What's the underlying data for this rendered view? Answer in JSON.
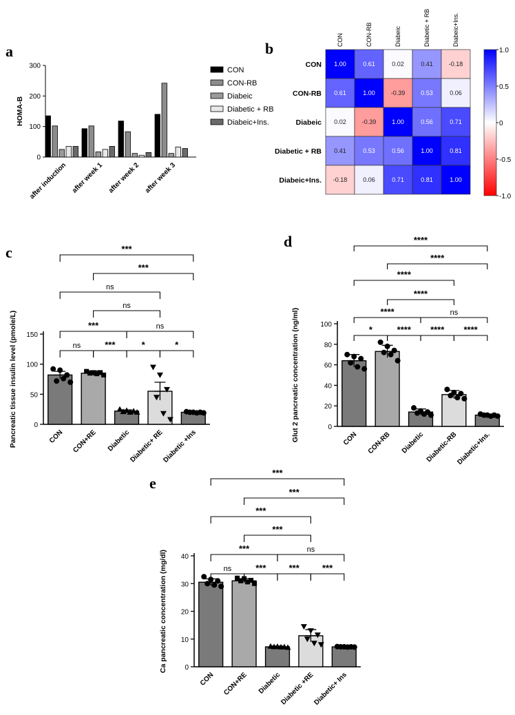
{
  "colors": {
    "bar_dark": "#7a7a7a",
    "bar_mid": "#a9a9a9",
    "bar_light": "#dcdcdc",
    "pos": "#0000ff",
    "neg": "#ff0000"
  },
  "chart_data": [
    {
      "id": "a",
      "panel_label": "a",
      "type": "bar",
      "ylabel": "HOMA-B",
      "ylim": [
        0,
        300
      ],
      "yticks": [
        0,
        100,
        200,
        300
      ],
      "categories": [
        "after induction",
        "after week 1",
        "after week 2",
        "after week 3"
      ],
      "series": [
        {
          "name": "CON",
          "values": [
            135,
            93,
            118,
            140
          ],
          "fill": "#000000"
        },
        {
          "name": "CON-RB",
          "values": [
            102,
            102,
            83,
            242
          ],
          "fill": "#8c8c8c"
        },
        {
          "name": "Diabeic",
          "values": [
            25,
            17,
            12,
            12
          ],
          "fill": "#9a9a9a"
        },
        {
          "name": "Diabetic + RB",
          "values": [
            35,
            25,
            6,
            33
          ],
          "fill": "#e8e8e8"
        },
        {
          "name": "Diabeic+Ins.",
          "values": [
            35,
            35,
            15,
            28
          ],
          "fill": "#6a6a6a"
        }
      ]
    },
    {
      "id": "b",
      "panel_label": "b",
      "type": "heatmap",
      "labels": [
        "CON",
        "CON-RB",
        "Diabeic",
        "Diabetic + RB",
        "Diabeic+Ins."
      ],
      "matrix": [
        [
          "1.00",
          "0.61",
          "0.02",
          "0.41",
          "-0.18"
        ],
        [
          "0.61",
          "1.00",
          "-0.39",
          "0.53",
          "0.06"
        ],
        [
          "0.02",
          "-0.39",
          "1.00",
          "0.56",
          "0.71"
        ],
        [
          "0.41",
          "0.53",
          "0.56",
          "1.00",
          "0.81"
        ],
        [
          "-0.18",
          "0.06",
          "0.71",
          "0.81",
          "1.00"
        ]
      ],
      "colorbar_ticks": [
        "1.0",
        "0.5",
        "0",
        "-0.5",
        "-1.0"
      ],
      "range": [
        -1,
        1
      ]
    },
    {
      "id": "c",
      "panel_label": "c",
      "type": "bar",
      "ylabel": "Pancreatic tissue insulin level (pmole/L)",
      "ylim": [
        0,
        150
      ],
      "yticks": [
        0,
        50,
        100,
        150
      ],
      "categories": [
        "CON",
        "CON+RE",
        "Diabetic",
        "Diabetic+ RE",
        "Diabetic +Ins"
      ],
      "values": [
        82,
        85,
        22,
        55,
        20
      ],
      "errors": [
        6,
        4,
        2,
        15,
        1
      ],
      "points": [
        [
          92,
          90,
          82,
          72,
          76,
          70
        ],
        [
          88,
          86,
          86,
          85,
          84,
          82
        ],
        [
          25,
          23,
          22,
          21,
          20,
          20
        ],
        [
          95,
          82,
          58,
          45,
          18,
          8
        ],
        [
          21,
          20,
          20,
          20,
          19,
          19
        ]
      ],
      "markers": [
        "circle",
        "square",
        "triangle",
        "tri-down",
        "circle"
      ],
      "significance": [
        {
          "from": 0,
          "to": 4,
          "label": "***"
        },
        {
          "from": 1,
          "to": 4,
          "label": "***"
        },
        {
          "from": 0,
          "to": 3,
          "label": "ns"
        },
        {
          "from": 1,
          "to": 3,
          "label": "ns"
        },
        {
          "from": 0,
          "to": 2,
          "label": "***"
        },
        {
          "from": 2,
          "to": 4,
          "label": "ns"
        },
        {
          "from": 0,
          "to": 1,
          "label": "ns"
        },
        {
          "from": 1,
          "to": 2,
          "label": "***"
        },
        {
          "from": 2,
          "to": 3,
          "label": "*"
        },
        {
          "from": 3,
          "to": 4,
          "label": "*"
        }
      ]
    },
    {
      "id": "d",
      "panel_label": "d",
      "type": "bar",
      "ylabel": "Glut 2 pancreatic concentration  (ng/ml)",
      "ylim": [
        0,
        100
      ],
      "yticks": [
        0,
        20,
        40,
        60,
        80,
        100
      ],
      "categories": [
        "CON",
        "CON-RB",
        "Diabetic",
        "Diabetic-RB",
        "Diabetic+Ins."
      ],
      "values": [
        64,
        73,
        14,
        31,
        11
      ],
      "errors": [
        6,
        6,
        3,
        4,
        1
      ],
      "points": [
        [
          70,
          68,
          66,
          62,
          58,
          56
        ],
        [
          82,
          78,
          74,
          72,
          70,
          64
        ],
        [
          18,
          15,
          14,
          13,
          12,
          11
        ],
        [
          36,
          33,
          32,
          30,
          28,
          27
        ],
        [
          12,
          11,
          11,
          11,
          10,
          10
        ]
      ],
      "markers": [
        "circle",
        "circle",
        "circle",
        "circle",
        "circle"
      ],
      "significance": [
        {
          "from": 0,
          "to": 4,
          "label": "****"
        },
        {
          "from": 1,
          "to": 4,
          "label": "****"
        },
        {
          "from": 0,
          "to": 3,
          "label": "****"
        },
        {
          "from": 1,
          "to": 3,
          "label": "****"
        },
        {
          "from": 0,
          "to": 2,
          "label": "****"
        },
        {
          "from": 2,
          "to": 4,
          "label": "ns"
        },
        {
          "from": 0,
          "to": 1,
          "label": "*"
        },
        {
          "from": 1,
          "to": 2,
          "label": "****"
        },
        {
          "from": 2,
          "to": 3,
          "label": "****"
        },
        {
          "from": 3,
          "to": 4,
          "label": "****"
        }
      ]
    },
    {
      "id": "e",
      "panel_label": "e",
      "type": "bar",
      "ylabel": "Ca pancreatic concentration  (mg/dl)",
      "ylim": [
        0,
        40
      ],
      "yticks": [
        0,
        10,
        20,
        30,
        40
      ],
      "categories": [
        "CON",
        "CON+RE",
        "Diabetic",
        "Diabetic +RE",
        "Diabetic+ Ins"
      ],
      "values": [
        30.5,
        31,
        7.2,
        11.2,
        7.2
      ],
      "errors": [
        1.2,
        0.8,
        0.3,
        2.2,
        0.2
      ],
      "points": [
        [
          32.5,
          31.5,
          31,
          30,
          29.5,
          29
        ],
        [
          32,
          31.8,
          31.2,
          31,
          30.6,
          30
        ],
        [
          7.4,
          7.3,
          7.2,
          7.2,
          7.1,
          7
        ],
        [
          14.5,
          13,
          11.5,
          10,
          8.5,
          8
        ],
        [
          7.3,
          7.2,
          7.2,
          7.2,
          7.1,
          7.1
        ]
      ],
      "markers": [
        "circle",
        "square",
        "triangle",
        "tri-down",
        "circle"
      ],
      "significance": [
        {
          "from": 0,
          "to": 4,
          "label": "***"
        },
        {
          "from": 1,
          "to": 4,
          "label": "***"
        },
        {
          "from": 0,
          "to": 3,
          "label": "***"
        },
        {
          "from": 1,
          "to": 3,
          "label": "***"
        },
        {
          "from": 0,
          "to": 2,
          "label": "***"
        },
        {
          "from": 2,
          "to": 4,
          "label": "ns"
        },
        {
          "from": 0,
          "to": 1,
          "label": "ns"
        },
        {
          "from": 1,
          "to": 2,
          "label": "***"
        },
        {
          "from": 2,
          "to": 3,
          "label": "***"
        },
        {
          "from": 3,
          "to": 4,
          "label": "***"
        }
      ]
    }
  ]
}
